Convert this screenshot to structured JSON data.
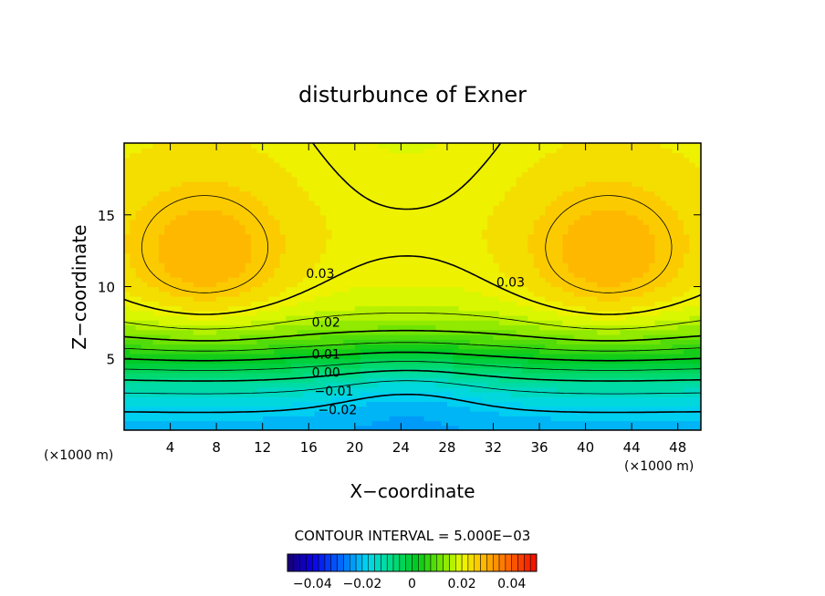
{
  "chart_data": {
    "type": "heatmap",
    "title": "disturbunce of Exner",
    "xlabel": "X−coordinate",
    "ylabel": "Z−coordinate",
    "x_unit_left": "(×1000 m)",
    "x_unit_right": "(×1000 m)",
    "xlim": [
      0,
      50
    ],
    "ylim": [
      0,
      20
    ],
    "x_ticks": [
      4,
      8,
      12,
      16,
      20,
      24,
      28,
      32,
      36,
      40,
      44,
      48
    ],
    "y_ticks": [
      5,
      10,
      15
    ],
    "contour_interval_text": "CONTOUR INTERVAL = 5.000E−03",
    "contour_labels": [
      {
        "text": "0.03",
        "x": 17,
        "z": 10.6
      },
      {
        "text": "0.03",
        "x": 33.5,
        "z": 10.0
      },
      {
        "text": "0.02",
        "x": 17.5,
        "z": 7.2
      },
      {
        "text": "0.01",
        "x": 17.5,
        "z": 5.0
      },
      {
        "text": "0.00",
        "x": 17.5,
        "z": 3.7
      },
      {
        "text": "−0.01",
        "x": 18.2,
        "z": 2.4
      },
      {
        "text": "−0.02",
        "x": 18.5,
        "z": 1.1
      }
    ],
    "colorbar": {
      "vmin": -0.05,
      "vmax": 0.05,
      "tick_values": [
        -0.04,
        -0.02,
        0,
        0.02,
        0.04
      ],
      "tick_labels": [
        "−0.04",
        "−0.02",
        "0",
        "0.02",
        "0.04"
      ]
    },
    "grid": false
  }
}
